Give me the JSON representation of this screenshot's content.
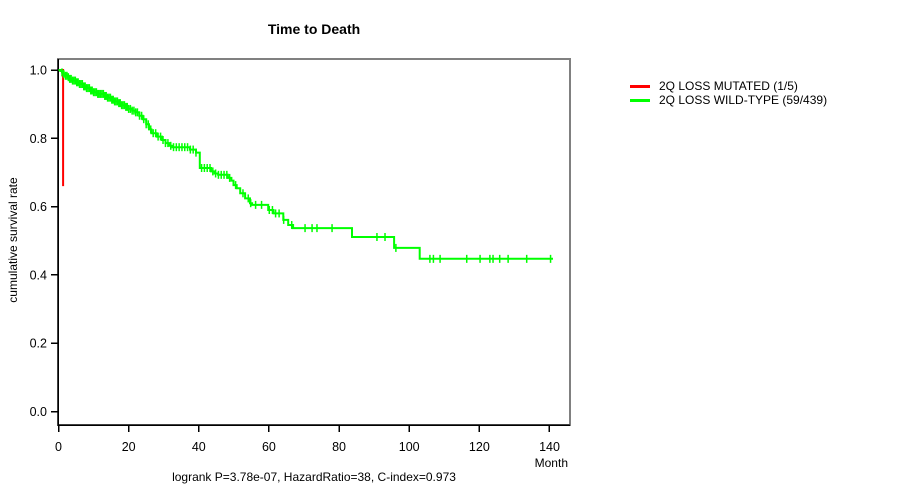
{
  "figure": {
    "title": "Time to Death",
    "x_axis_label": "Month",
    "y_axis_label": "cumulative survival rate",
    "footer_stats": "logrank P=3.78e-07, HazardRatio=38, C-index=0.973"
  },
  "legend": {
    "items": [
      {
        "label": "2Q LOSS MUTATED (1/5)",
        "color": "#ff0000"
      },
      {
        "label": "2Q LOSS WILD-TYPE (59/439)",
        "color": "#00ff00"
      }
    ]
  },
  "chart_data": {
    "type": "line",
    "subtype": "kaplan-meier-step",
    "title": "Time to Death",
    "xlabel": "Month",
    "ylabel": "cumulative survival rate",
    "xlim": [
      0,
      146
    ],
    "ylim": [
      -0.04,
      1.03
    ],
    "x_ticks": [
      0,
      20,
      40,
      60,
      80,
      100,
      120,
      140
    ],
    "x_tick_labels": [
      "0",
      "20",
      "40",
      "60",
      "80",
      "100",
      "120",
      "140"
    ],
    "y_ticks": [
      0.0,
      0.2,
      0.4,
      0.6,
      0.8,
      1.0
    ],
    "y_tick_labels": [
      "0.0",
      "0.2",
      "0.4",
      "0.6",
      "0.8",
      "1.0"
    ],
    "grid": false,
    "legend_position": "right-outside",
    "statistics": {
      "logrank_p": "3.78e-07",
      "hazard_ratio": "38",
      "c_index": "0.973"
    },
    "series": [
      {
        "name": "2Q LOSS MUTATED (1/5)",
        "events_over_n": "1/5",
        "color": "#ff0000",
        "end_month": 1.6,
        "steps": [
          [
            0,
            1.0
          ],
          [
            1.3,
            0.663
          ]
        ],
        "censor_times": []
      },
      {
        "name": "2Q LOSS WILD-TYPE (59/439)",
        "events_over_n": "59/439",
        "color": "#00ff00",
        "end_month": 141,
        "steps": [
          [
            0,
            1.0
          ],
          [
            0.5,
            0.997
          ],
          [
            1,
            0.993
          ],
          [
            1.5,
            0.988
          ],
          [
            2,
            0.983
          ],
          [
            2.5,
            0.979
          ],
          [
            3,
            0.974
          ],
          [
            4,
            0.969
          ],
          [
            5,
            0.964
          ],
          [
            6,
            0.959
          ],
          [
            7,
            0.952
          ],
          [
            8,
            0.947
          ],
          [
            9,
            0.94
          ],
          [
            10,
            0.935
          ],
          [
            11,
            0.93
          ],
          [
            13,
            0.924
          ],
          [
            14,
            0.919
          ],
          [
            15,
            0.913
          ],
          [
            16,
            0.908
          ],
          [
            17,
            0.903
          ],
          [
            18,
            0.897
          ],
          [
            19,
            0.892
          ],
          [
            20,
            0.886
          ],
          [
            21,
            0.881
          ],
          [
            22,
            0.876
          ],
          [
            23,
            0.866
          ],
          [
            24,
            0.856
          ],
          [
            25,
            0.841
          ],
          [
            25.8,
            0.826
          ],
          [
            26.5,
            0.815
          ],
          [
            28,
            0.805
          ],
          [
            29.5,
            0.795
          ],
          [
            30.5,
            0.786
          ],
          [
            31.5,
            0.778
          ],
          [
            32.5,
            0.774
          ],
          [
            37.5,
            0.767
          ],
          [
            39.2,
            0.758
          ],
          [
            40.3,
            0.713
          ],
          [
            43.5,
            0.703
          ],
          [
            44.5,
            0.697
          ],
          [
            45.5,
            0.693
          ],
          [
            48.3,
            0.684
          ],
          [
            49.3,
            0.676
          ],
          [
            49.9,
            0.663
          ],
          [
            50.8,
            0.654
          ],
          [
            51.8,
            0.639
          ],
          [
            53.2,
            0.624
          ],
          [
            54.6,
            0.61
          ],
          [
            55.2,
            0.605
          ],
          [
            59.8,
            0.59
          ],
          [
            61.3,
            0.58
          ],
          [
            64.1,
            0.561
          ],
          [
            65.5,
            0.546
          ],
          [
            66.9,
            0.537
          ],
          [
            83.7,
            0.511
          ],
          [
            95.7,
            0.479
          ],
          [
            103,
            0.447
          ]
        ],
        "censor_times": [
          1.0,
          1.5,
          2.0,
          2.4,
          2.8,
          3.2,
          3.6,
          4.0,
          4.4,
          4.8,
          5.2,
          5.6,
          6.0,
          6.4,
          6.8,
          7.2,
          7.6,
          8.0,
          8.4,
          8.8,
          9.2,
          9.6,
          10.0,
          10.4,
          10.8,
          11.2,
          11.6,
          12.0,
          12.4,
          12.8,
          13.2,
          13.6,
          14.0,
          14.4,
          14.8,
          15.2,
          15.6,
          16.0,
          16.4,
          16.8,
          17.2,
          17.6,
          18.0,
          18.4,
          18.8,
          19.2,
          19.6,
          20.0,
          20.5,
          21.0,
          21.5,
          22.0,
          22.5,
          23.1,
          23.7,
          24.3,
          25.0,
          25.6,
          26.3,
          27.0,
          27.7,
          28.4,
          29.1,
          29.8,
          30.5,
          31.2,
          32.0,
          32.8,
          33.6,
          34.4,
          35.2,
          36.0,
          36.8,
          37.6,
          38.4,
          39.2,
          40.8,
          41.6,
          42.4,
          43.2,
          44.0,
          44.8,
          45.6,
          46.4,
          47.2,
          48.0,
          48.8,
          50.5,
          52.6,
          54.1,
          54.8,
          56.2,
          57.9,
          60.1,
          61.0,
          61.9,
          62.9,
          64.2,
          66.5,
          70.3,
          72.3,
          73.7,
          78.0,
          90.8,
          93.1,
          96.2,
          105.9,
          106.9,
          108.8,
          116.4,
          120.2,
          123.0,
          123.9,
          125.8,
          128.2,
          133.5,
          140.3
        ]
      }
    ]
  }
}
